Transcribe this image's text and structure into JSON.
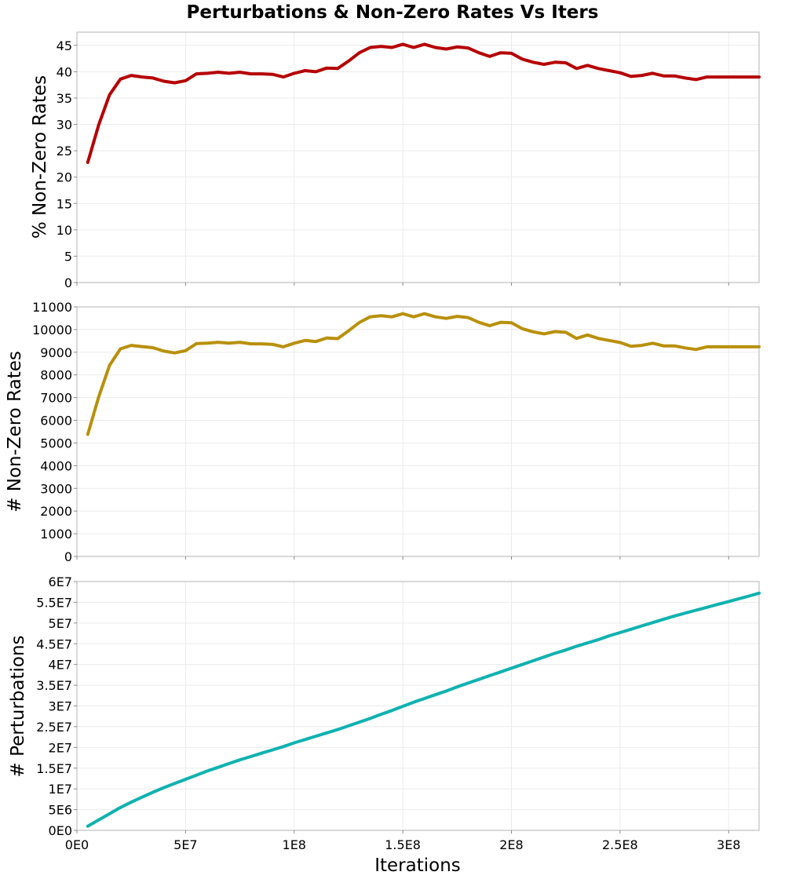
{
  "chart_data": {
    "type": "line",
    "title": "Perturbations & Non-Zero Rates Vs Iters",
    "xlabel": "Iterations",
    "xlim": [
      0,
      314000000
    ],
    "x_ticks": [
      0,
      50000000,
      100000000,
      150000000,
      200000000,
      250000000,
      300000000
    ],
    "x_tick_labels": [
      "0E0",
      "5E7",
      "1E8",
      "1.5E8",
      "2E8",
      "2.5E8",
      "3E8"
    ],
    "x": [
      5000000,
      10000000,
      15000000,
      20000000,
      25000000,
      30000000,
      35000000,
      40000000,
      45000000,
      50000000,
      55000000,
      60000000,
      65000000,
      70000000,
      75000000,
      80000000,
      85000000,
      90000000,
      95000000,
      100000000,
      105000000,
      110000000,
      115000000,
      120000000,
      125000000,
      130000000,
      135000000,
      140000000,
      145000000,
      150000000,
      155000000,
      160000000,
      165000000,
      170000000,
      175000000,
      180000000,
      185000000,
      190000000,
      195000000,
      200000000,
      205000000,
      210000000,
      215000000,
      220000000,
      225000000,
      230000000,
      235000000,
      240000000,
      245000000,
      250000000,
      255000000,
      260000000,
      265000000,
      270000000,
      275000000,
      280000000,
      285000000,
      290000000,
      295000000,
      300000000,
      305000000,
      310000000,
      314000000
    ],
    "grid": true,
    "panels": [
      {
        "ylabel": "% Non-Zero Rates",
        "ylim": [
          0,
          47.5
        ],
        "y_ticks": [
          0,
          5,
          10,
          15,
          20,
          25,
          30,
          35,
          40,
          45
        ],
        "y_tick_labels": [
          "0",
          "5",
          "10",
          "15",
          "20",
          "25",
          "30",
          "35",
          "40",
          "45"
        ],
        "color": "#b50000",
        "values": [
          22.8,
          29.9,
          35.6,
          38.6,
          39.3,
          39.0,
          38.8,
          38.2,
          37.9,
          38.3,
          39.6,
          39.7,
          39.9,
          39.7,
          39.9,
          39.6,
          39.6,
          39.5,
          39.0,
          39.7,
          40.2,
          40.0,
          40.7,
          40.6,
          42.0,
          43.6,
          44.6,
          44.8,
          44.6,
          45.2,
          44.6,
          45.2,
          44.6,
          44.3,
          44.7,
          44.5,
          43.6,
          42.9,
          43.6,
          43.5,
          42.4,
          41.8,
          41.4,
          41.8,
          41.7,
          40.6,
          41.2,
          40.6,
          40.2,
          39.8,
          39.1,
          39.3,
          39.7,
          39.2,
          39.2,
          38.8,
          38.5,
          39.0,
          39.0,
          39.0,
          39.0,
          39.0,
          39.0
        ]
      },
      {
        "ylabel": "# Non-Zero Rates",
        "ylim": [
          0,
          11000
        ],
        "y_ticks": [
          0,
          1000,
          2000,
          3000,
          4000,
          5000,
          6000,
          7000,
          8000,
          9000,
          10000,
          11000
        ],
        "y_tick_labels": [
          "0",
          "1000",
          "2000",
          "3000",
          "4000",
          "5000",
          "6000",
          "7000",
          "8000",
          "9000",
          "10000",
          "11000"
        ],
        "color": "#b8900a",
        "values": [
          5380,
          7030,
          8420,
          9150,
          9300,
          9250,
          9200,
          9050,
          8970,
          9070,
          9380,
          9400,
          9440,
          9400,
          9440,
          9370,
          9370,
          9350,
          9240,
          9400,
          9520,
          9470,
          9630,
          9600,
          9940,
          10310,
          10560,
          10610,
          10560,
          10700,
          10560,
          10700,
          10560,
          10490,
          10580,
          10530,
          10320,
          10170,
          10320,
          10300,
          10040,
          9900,
          9810,
          9910,
          9880,
          9610,
          9760,
          9610,
          9520,
          9430,
          9260,
          9300,
          9400,
          9280,
          9280,
          9190,
          9120,
          9240,
          9240,
          9240,
          9240,
          9240,
          9240
        ]
      },
      {
        "ylabel": "# Perturbations",
        "ylim": [
          0,
          60000000
        ],
        "y_ticks": [
          0,
          5000000,
          10000000,
          15000000,
          20000000,
          25000000,
          30000000,
          35000000,
          40000000,
          45000000,
          50000000,
          55000000,
          60000000
        ],
        "y_tick_labels": [
          "0E0",
          "5E6",
          "1E7",
          "1.5E7",
          "2E7",
          "2.5E7",
          "3E7",
          "3.5E7",
          "4E7",
          "4.5E7",
          "5E7",
          "5.5E7",
          "6E7"
        ],
        "color": "#0fb2b0",
        "values": [
          1000000,
          2500000,
          4000000,
          5500000,
          6800000,
          8000000,
          9200000,
          10300000,
          11300000,
          12300000,
          13300000,
          14300000,
          15200000,
          16100000,
          17000000,
          17800000,
          18600000,
          19400000,
          20200000,
          21100000,
          21900000,
          22700000,
          23500000,
          24300000,
          25200000,
          26100000,
          27000000,
          28000000,
          28900000,
          29900000,
          30900000,
          31800000,
          32700000,
          33600000,
          34600000,
          35500000,
          36400000,
          37300000,
          38200000,
          39100000,
          40000000,
          40900000,
          41800000,
          42700000,
          43500000,
          44400000,
          45200000,
          46000000,
          46900000,
          47700000,
          48500000,
          49300000,
          50100000,
          50900000,
          51700000,
          52400000,
          53100000,
          53800000,
          54500000,
          55200000,
          55900000,
          56600000,
          57200000
        ]
      }
    ]
  }
}
